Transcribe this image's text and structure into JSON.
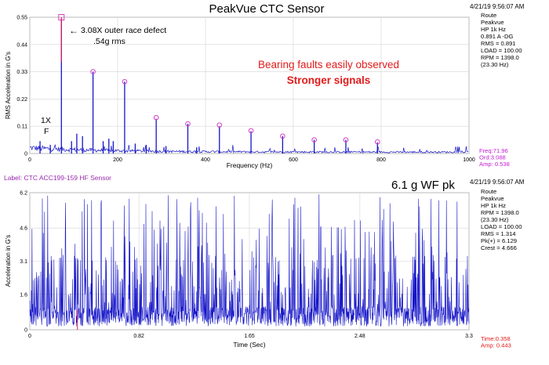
{
  "colors": {
    "signal": "#1515c8",
    "marker": "#d641c9",
    "cursor": "#e0205a",
    "note_red": "#e21b1b",
    "readout_magenta": "#c21bd2",
    "readout_red": "#e41c1c",
    "grid": "#d4d4d4",
    "label_purple": "#9b2bb0"
  },
  "top_panel": {
    "title": "PeakVue CTC Sensor",
    "timestamp": "4/21/19 9:56:07 AM",
    "info_lines": [
      "Route",
      "Peakvue",
      "HP 1k Hz",
      "0.891 A -DG",
      "RMS = 0.891",
      "LOAD = 100.00",
      "RPM = 1398.0",
      "(23.30 Hz)"
    ],
    "readout": [
      "Freq:71.96",
      "Ord:3.088",
      "Amp: 0.538"
    ],
    "annotations": {
      "defect_line1": "3.08X outer race defect",
      "defect_line2": ".54g rms",
      "arrow": "←",
      "one_x": "1X",
      "f_label": "F",
      "bearing_note": "Bearing faults easily observed",
      "stronger_note": "Stronger signals"
    }
  },
  "bottom_panel": {
    "sensor_label": "Label: CTC ACC199-159 HF Sensor",
    "peak_note": "6.1 g WF pk",
    "timestamp": "4/21/19 9:56:07 AM",
    "info_lines": [
      "Route",
      "Peakvue",
      "HP 1k Hz",
      "RPM = 1398.0",
      "(23.30 Hz)",
      "LOAD = 100.00",
      "RMS = 1.314",
      "Pk(+) = 6.129",
      "Crest = 4.666"
    ],
    "readout": [
      "Time:0.358",
      "Amp: 0.443"
    ]
  },
  "chart_data": [
    {
      "type": "line",
      "title": "PeakVue CTC Sensor",
      "xlabel": "Frequency (Hz)",
      "ylabel": "RMS Acceleration in G's",
      "xlim": [
        0,
        1000
      ],
      "ylim": [
        0,
        0.55
      ],
      "xticks": [
        0,
        200,
        400,
        600,
        800,
        1000
      ],
      "yticks": [
        0,
        0.11,
        0.22,
        0.33,
        0.44,
        0.55
      ],
      "xtick_labels": [
        "0",
        "200",
        "400",
        "600",
        "800",
        "1000"
      ],
      "ytick_labels": [
        "0",
        "0.11",
        "0.22",
        "0.33",
        "0.44",
        "0.55"
      ],
      "grid": true,
      "series": [
        {
          "values": [
            [
              23.3,
              0.05
            ],
            [
              46.6,
              0.035
            ],
            [
              71.96,
              0.538
            ],
            [
              95,
              0.05
            ],
            [
              107,
              0.08
            ],
            [
              120,
              0.07
            ],
            [
              143.9,
              0.33
            ],
            [
              167,
              0.05
            ],
            [
              180,
              0.06
            ],
            [
              190,
              0.05
            ],
            [
              215.9,
              0.29
            ],
            [
              240,
              0.04
            ],
            [
              265,
              0.035
            ],
            [
              287.8,
              0.14
            ],
            [
              310,
              0.03
            ],
            [
              359.8,
              0.12
            ],
            [
              380,
              0.025
            ],
            [
              431.7,
              0.11
            ],
            [
              503.7,
              0.09
            ],
            [
              575.7,
              0.07
            ],
            [
              647.6,
              0.055
            ],
            [
              719.6,
              0.055
            ],
            [
              791.6,
              0.045
            ]
          ]
        }
      ],
      "harmonic_markers": [
        [
          71.96,
          0.55
        ],
        [
          143.9,
          0.33
        ],
        [
          215.9,
          0.29
        ],
        [
          287.8,
          0.145
        ],
        [
          359.8,
          0.12
        ],
        [
          431.7,
          0.115
        ],
        [
          503.7,
          0.092
        ],
        [
          575.7,
          0.07
        ],
        [
          647.6,
          0.055
        ],
        [
          719.6,
          0.055
        ],
        [
          791.6,
          0.047
        ]
      ]
    },
    {
      "type": "line",
      "xlabel": "Time (Sec)",
      "ylabel": "Acceleration in G's",
      "xlim": [
        0,
        3.3
      ],
      "ylim": [
        0,
        6.2
      ],
      "xticks": [
        0,
        0.82,
        1.65,
        2.48,
        3.3
      ],
      "yticks": [
        0,
        1.6,
        3.1,
        4.6,
        6.2
      ],
      "xtick_labels": [
        "0",
        "0.82",
        "1.65",
        "2.48",
        "3.3"
      ],
      "ytick_labels": [
        "0",
        "1.6",
        "3.1",
        "4.6",
        "6.2"
      ],
      "grid": true,
      "peak_value": 6.129,
      "rms_value": 1.314,
      "cursor": {
        "time": 0.358,
        "amp": 0.443
      }
    }
  ]
}
